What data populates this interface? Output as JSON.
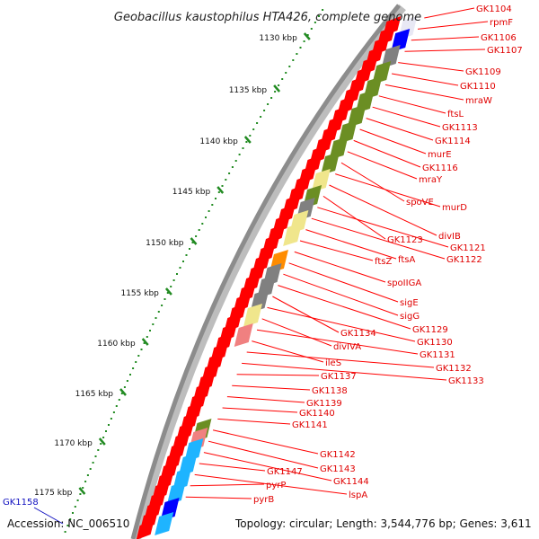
{
  "title": "Geobacillus kaustophilus HTA426, complete genome",
  "footer": {
    "accession": "Accession: NC_006510",
    "summary": "Topology: circular; Length: 3,544,776 bp; Genes: 3,611"
  },
  "ruler_labels": [
    "1130 kbp",
    "1135 kbp",
    "1140 kbp",
    "1145 kbp",
    "1150 kbp",
    "1155 kbp",
    "1160 kbp",
    "1165 kbp",
    "1170 kbp",
    "1175 kbp"
  ],
  "gene_labels": [
    "GK1104",
    "rpmF",
    "GK1106",
    "GK1107",
    "GK1109",
    "GK1110",
    "mraW",
    "ftsL",
    "GK1113",
    "GK1114",
    "murE",
    "GK1116",
    "mraY",
    "spoVE",
    "murD",
    "divIB",
    "GK1123",
    "GK1121",
    "GK1122",
    "ftsA",
    "ftsZ",
    "spoIIGA",
    "sigE",
    "sigG",
    "GK1129",
    "GK1134",
    "GK1130",
    "divIVA",
    "GK1131",
    "ileS",
    "GK1132",
    "GK1133",
    "GK1137",
    "GK1138",
    "GK1139",
    "GK1140",
    "GK1141",
    "GK1142",
    "GK1143",
    "GK1144",
    "GK1147",
    "lspA",
    "pyrP",
    "pyrB"
  ],
  "left_label": "GK1158",
  "colors": {
    "gene_red": "#ff0000",
    "olive": "#6b8e23",
    "pale_yellow": "#f0e68c",
    "blue": "#0000ff",
    "cyan": "#1eb4ff",
    "grey": "#808080",
    "orange": "#ff8c00",
    "pink": "#f08080",
    "ruler_green": "#228b22",
    "backbone": "#8c8c8c"
  }
}
